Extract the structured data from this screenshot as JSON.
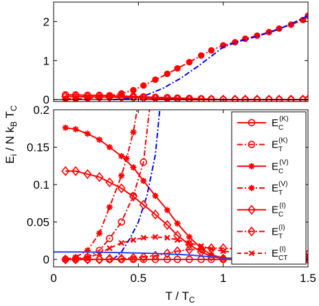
{
  "chart_data": {
    "type": "line",
    "ylabel": "E_i / N k_B T_C",
    "xlabel": "T / T_C",
    "colors": {
      "red": "#ff0000",
      "blue_dashdot": "#0000ff",
      "blue_solid": "#2244ee",
      "black": "#000000"
    },
    "xlim": [
      0,
      1.5
    ],
    "xticks": [
      "0",
      "0.5",
      "1",
      "1.5"
    ],
    "panels": [
      {
        "id": "top",
        "ylim": [
          -0.05,
          2.5
        ],
        "yticks": [
          "0",
          "1",
          "2"
        ],
        "series": [
          {
            "style": "red-dashdot-dots",
            "x": [
              0.07,
              0.13,
              0.2,
              0.27,
              0.33,
              0.4,
              0.47,
              0.53,
              0.6,
              0.67,
              0.73,
              0.8,
              0.87,
              0.93,
              1.0,
              1.07,
              1.13,
              1.2,
              1.27,
              1.33,
              1.4,
              1.47,
              1.5
            ],
            "y": [
              0.02,
              0.02,
              0.03,
              0.05,
              0.1,
              0.16,
              0.24,
              0.36,
              0.51,
              0.66,
              0.8,
              0.96,
              1.13,
              1.26,
              1.39,
              1.47,
              1.56,
              1.64,
              1.73,
              1.82,
              1.92,
              2.04,
              2.15
            ]
          },
          {
            "style": "blue-dashdot",
            "x": [
              0.35,
              0.45,
              0.55,
              0.65,
              0.75,
              0.85,
              0.95,
              1.0,
              1.1,
              1.2,
              1.3,
              1.4,
              1.5
            ],
            "y": [
              0.0,
              0.03,
              0.12,
              0.3,
              0.55,
              0.85,
              1.18,
              1.35,
              1.5,
              1.62,
              1.76,
              1.94,
              2.15
            ]
          },
          {
            "style": "red-solid-circles",
            "x": [
              0.07,
              0.13,
              0.2,
              0.27,
              0.33,
              0.4,
              0.47,
              0.53,
              0.6,
              0.67,
              0.73,
              0.8,
              0.87,
              0.93,
              1.0,
              1.07,
              1.13,
              1.2,
              1.27,
              1.33,
              1.4,
              1.47,
              1.5
            ],
            "y": [
              0.12,
              0.12,
              0.11,
              0.11,
              0.1,
              0.09,
              0.08,
              0.07,
              0.06,
              0.05,
              0.04,
              0.03,
              0.02,
              0.01,
              0.0,
              0.0,
              0.0,
              0.0,
              0.0,
              0.0,
              0.0,
              0.0,
              0.0
            ]
          },
          {
            "style": "red-solid-diamonds",
            "x": [
              0.07,
              0.13,
              0.2,
              0.27,
              0.33,
              0.4,
              0.47,
              0.53,
              0.6,
              0.67,
              0.73,
              0.8,
              0.87,
              0.93,
              1.0,
              1.07,
              1.13,
              1.2,
              1.27,
              1.33,
              1.4,
              1.47,
              1.5
            ],
            "y": [
              0.08,
              0.08,
              0.07,
              0.07,
              0.06,
              0.06,
              0.05,
              0.04,
              0.03,
              0.02,
              0.01,
              0.0,
              0.0,
              0.0,
              0.0,
              0.0,
              0.0,
              0.0,
              0.0,
              0.0,
              0.0,
              0.0,
              0.0
            ]
          },
          {
            "style": "black-solid",
            "x": [
              0,
              1.5
            ],
            "y": [
              0,
              0
            ]
          }
        ]
      },
      {
        "id": "bottom",
        "ylim": [
          -0.01,
          0.2
        ],
        "yticks": [
          "0",
          "0.05",
          "0.1",
          "0.15",
          "0.2"
        ],
        "series": [
          {
            "style": "red-solid-stars",
            "x": [
              0.07,
              0.13,
              0.2,
              0.27,
              0.33,
              0.4,
              0.47,
              0.53,
              0.6,
              0.67,
              0.73,
              0.8,
              0.87,
              0.93,
              1.0,
              1.07,
              1.13,
              1.2,
              1.27,
              1.33,
              1.4,
              1.47,
              1.5
            ],
            "y": [
              0.176,
              0.174,
              0.168,
              0.16,
              0.15,
              0.138,
              0.123,
              0.105,
              0.085,
              0.066,
              0.048,
              0.03,
              0.015,
              0.006,
              0.002,
              0.001,
              0.0,
              0.0,
              0.0,
              0.0,
              0.0,
              0.0,
              0.0
            ]
          },
          {
            "style": "red-dashdot-stars",
            "x": [
              0.07,
              0.13,
              0.2,
              0.27,
              0.33,
              0.4,
              0.43,
              0.47,
              0.5
            ],
            "y": [
              0.0,
              0.003,
              0.012,
              0.035,
              0.07,
              0.112,
              0.135,
              0.17,
              0.21
            ]
          },
          {
            "style": "red-dashdot-circles",
            "x": [
              0.13,
              0.2,
              0.27,
              0.33,
              0.4,
              0.47,
              0.53,
              0.57
            ],
            "y": [
              0.001,
              0.003,
              0.012,
              0.028,
              0.05,
              0.085,
              0.13,
              0.21
            ]
          },
          {
            "style": "blue-dashdot",
            "x": [
              0.35,
              0.4,
              0.45,
              0.5,
              0.55,
              0.6,
              0.63
            ],
            "y": [
              0.0,
              0.01,
              0.028,
              0.05,
              0.085,
              0.14,
              0.21
            ]
          },
          {
            "style": "red-solid-diamonds",
            "x": [
              0.07,
              0.13,
              0.2,
              0.27,
              0.33,
              0.4,
              0.47,
              0.53,
              0.6,
              0.67,
              0.73,
              0.8,
              0.87,
              0.93,
              1.0,
              1.07,
              1.13,
              1.2,
              1.27,
              1.33,
              1.4,
              1.47,
              1.5
            ],
            "y": [
              0.118,
              0.118,
              0.114,
              0.11,
              0.103,
              0.095,
              0.084,
              0.073,
              0.06,
              0.046,
              0.032,
              0.02,
              0.01,
              0.004,
              0.001,
              0.0,
              0.0,
              0.0,
              0.0,
              0.0,
              0.0,
              0.0,
              0.0
            ]
          },
          {
            "style": "red-dashdot-diamonds",
            "x": [
              0.07,
              0.13,
              0.2,
              0.27,
              0.33,
              0.4,
              0.47,
              0.53,
              0.6,
              0.67,
              0.73,
              0.8,
              0.87,
              0.93,
              1.0,
              1.07,
              1.13,
              1.2,
              1.27,
              1.33,
              1.4,
              1.47,
              1.5
            ],
            "y": [
              0.0,
              0.0,
              0.0,
              0.0,
              0.001,
              0.001,
              0.002,
              0.003,
              0.005,
              0.008,
              0.011,
              0.013,
              0.014,
              0.015,
              0.015,
              0.014,
              0.013,
              0.012,
              0.011,
              0.01,
              0.009,
              0.008,
              0.007
            ]
          },
          {
            "style": "red-dashed-x",
            "x": [
              0.07,
              0.13,
              0.2,
              0.27,
              0.33,
              0.4,
              0.47,
              0.53,
              0.6,
              0.67,
              0.73,
              0.8,
              0.87,
              0.93,
              1.0,
              1.07,
              1.13,
              1.2,
              1.27,
              1.33,
              1.4,
              1.47,
              1.5
            ],
            "y": [
              0.0,
              0.0,
              0.002,
              0.008,
              0.015,
              0.022,
              0.026,
              0.029,
              0.03,
              0.029,
              0.026,
              0.022,
              0.018,
              0.014,
              0.011,
              0.009,
              0.008,
              0.007,
              0.006,
              0.006,
              0.005,
              0.005,
              0.005
            ]
          },
          {
            "style": "red-solid-circles",
            "x": [
              0.07,
              0.13,
              0.2,
              0.27,
              0.33,
              0.4,
              0.47,
              0.53,
              0.6,
              0.67,
              0.73,
              0.8,
              0.87,
              0.93,
              1.0,
              1.07,
              1.13,
              1.2,
              1.27,
              1.33,
              1.4,
              1.47,
              1.5
            ],
            "y": [
              0.0,
              0.0,
              0.0,
              0.0,
              0.0,
              0.0,
              0.0,
              0.0,
              0.0,
              0.0,
              0.0,
              0.0,
              0.0,
              0.0,
              0.0,
              0.0,
              0.0,
              0.0,
              0.0,
              0.0,
              0.0,
              0.0,
              0.0
            ]
          },
          {
            "style": "blue-solid",
            "x": [
              0.0,
              0.2,
              0.4,
              0.6,
              0.8,
              0.9,
              1.0,
              1.1,
              1.2,
              1.3,
              1.4,
              1.5
            ],
            "y": [
              0.01,
              0.01,
              0.009,
              0.008,
              0.006,
              0.004,
              0.002,
              0.001,
              0.0,
              0.0,
              0.0,
              0.0
            ]
          }
        ]
      }
    ],
    "legend": {
      "placement": "top-right of bottom panel",
      "entries": [
        {
          "base": "E",
          "sub": "C",
          "sup": "(K)",
          "style": "red-solid-circles"
        },
        {
          "base": "E",
          "sub": "T",
          "sup": "(K)",
          "style": "red-dashdot-circles"
        },
        {
          "base": "E",
          "sub": "C",
          "sup": "(V)",
          "style": "red-solid-stars"
        },
        {
          "base": "E",
          "sub": "T",
          "sup": "(V)",
          "style": "red-dashdot-stars"
        },
        {
          "base": "E",
          "sub": "C",
          "sup": "(I)",
          "style": "red-solid-diamonds"
        },
        {
          "base": "E",
          "sub": "T",
          "sup": "(I)",
          "style": "red-dashdot-diamonds"
        },
        {
          "base": "E",
          "sub": "CT",
          "sup": "(I)",
          "style": "red-dashed-x"
        }
      ]
    }
  }
}
